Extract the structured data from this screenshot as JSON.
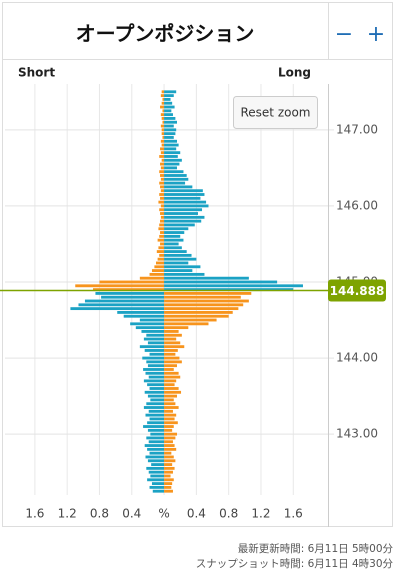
{
  "header": {
    "title": "オープンポジション",
    "zoom_out": "−",
    "zoom_in": "+"
  },
  "chart_data": {
    "type": "bar",
    "orientation": "horizontal",
    "reset_zoom": "Reset zoom",
    "y": [
      147.5,
      147.45,
      147.4,
      147.35,
      147.3,
      147.25,
      147.2,
      147.15,
      147.1,
      147.05,
      147,
      146.95,
      146.9,
      146.85,
      146.8,
      146.75,
      146.7,
      146.65,
      146.6,
      146.55,
      146.5,
      146.45,
      146.4,
      146.35,
      146.3,
      146.25,
      146.2,
      146.15,
      146.1,
      146.05,
      146,
      145.95,
      145.9,
      145.85,
      145.8,
      145.75,
      145.7,
      145.65,
      145.6,
      145.55,
      145.5,
      145.45,
      145.4,
      145.35,
      145.3,
      145.25,
      145.2,
      145.15,
      145.1,
      145.05,
      145,
      144.95,
      144.9,
      144.85,
      144.8,
      144.75,
      144.7,
      144.65,
      144.6,
      144.55,
      144.5,
      144.45,
      144.4,
      144.35,
      144.3,
      144.25,
      144.2,
      144.15,
      144.1,
      144.05,
      144,
      143.95,
      143.9,
      143.85,
      143.8,
      143.75,
      143.7,
      143.65,
      143.6,
      143.55,
      143.5,
      143.45,
      143.4,
      143.35,
      143.3,
      143.25,
      143.2,
      143.15,
      143.1,
      143.05,
      143,
      142.95,
      142.9,
      142.85,
      142.8,
      142.75,
      142.7,
      142.65,
      142.6,
      142.55,
      142.5,
      142.45,
      142.4,
      142.35,
      142.3,
      142.25
    ],
    "series": [
      {
        "name": "Short",
        "side": "left",
        "color_above": "#f7941d",
        "color_below": "#1ba2c4",
        "values": [
          0.03,
          0.04,
          0.02,
          0.03,
          0.05,
          0.02,
          0.04,
          0.03,
          0.02,
          0.04,
          0.03,
          0.03,
          0.02,
          0.04,
          0.03,
          0.05,
          0.04,
          0.06,
          0.03,
          0.05,
          0.04,
          0.06,
          0.05,
          0.04,
          0.06,
          0.05,
          0.04,
          0.06,
          0.05,
          0.07,
          0.04,
          0.06,
          0.05,
          0.04,
          0.05,
          0.06,
          0.07,
          0.05,
          0.06,
          0.08,
          0.05,
          0.07,
          0.09,
          0.06,
          0.08,
          0.1,
          0.12,
          0.15,
          0.18,
          0.3,
          0.8,
          1.1,
          0.88,
          0.85,
          0.78,
          0.98,
          1.06,
          1.16,
          0.58,
          0.5,
          0.3,
          0.42,
          0.35,
          0.28,
          0.22,
          0.25,
          0.2,
          0.3,
          0.24,
          0.18,
          0.27,
          0.22,
          0.2,
          0.26,
          0.23,
          0.19,
          0.25,
          0.21,
          0.18,
          0.24,
          0.2,
          0.17,
          0.22,
          0.25,
          0.19,
          0.23,
          0.18,
          0.21,
          0.26,
          0.2,
          0.17,
          0.22,
          0.19,
          0.24,
          0.21,
          0.18,
          0.23,
          0.2,
          0.16,
          0.22,
          0.19,
          0.17,
          0.21,
          0.15,
          0.18,
          0.14
        ]
      },
      {
        "name": "Long",
        "side": "right",
        "color_above": "#1ba2c4",
        "color_below": "#f7941d",
        "values": [
          0.15,
          0.12,
          0.08,
          0.1,
          0.13,
          0.09,
          0.11,
          0.14,
          0.16,
          0.12,
          0.15,
          0.14,
          0.12,
          0.16,
          0.18,
          0.15,
          0.2,
          0.17,
          0.22,
          0.19,
          0.16,
          0.24,
          0.28,
          0.3,
          0.26,
          0.35,
          0.48,
          0.5,
          0.45,
          0.52,
          0.55,
          0.47,
          0.42,
          0.5,
          0.46,
          0.38,
          0.3,
          0.25,
          0.2,
          0.24,
          0.18,
          0.22,
          0.28,
          0.34,
          0.4,
          0.3,
          0.45,
          0.35,
          0.5,
          1.05,
          1.4,
          1.72,
          1.6,
          1.08,
          0.95,
          1.05,
          0.98,
          0.92,
          0.85,
          0.8,
          0.65,
          0.55,
          0.3,
          0.18,
          0.22,
          0.15,
          0.2,
          0.25,
          0.17,
          0.14,
          0.19,
          0.22,
          0.16,
          0.12,
          0.18,
          0.2,
          0.15,
          0.13,
          0.18,
          0.21,
          0.16,
          0.12,
          0.14,
          0.18,
          0.11,
          0.15,
          0.13,
          0.17,
          0.12,
          0.1,
          0.16,
          0.14,
          0.11,
          0.13,
          0.15,
          0.09,
          0.12,
          0.14,
          0.1,
          0.13,
          0.11,
          0.08,
          0.12,
          0.1,
          0.09,
          0.11
        ]
      }
    ],
    "current_price": {
      "value": 144.888,
      "color": "#7ea300"
    },
    "xlim": [
      -1.97,
      2.03
    ],
    "xticks": [
      {
        "value": -1.6,
        "label": "1.6"
      },
      {
        "value": -1.2,
        "label": "1.2"
      },
      {
        "value": -0.8,
        "label": "0.8"
      },
      {
        "value": -0.4,
        "label": "0.4"
      },
      {
        "value": 0,
        "label": "%"
      },
      0.4,
      0.8,
      1.2,
      1.6
    ],
    "ylim": [
      142.2,
      147.55
    ],
    "yticks": [
      {
        "value": 143,
        "label": "143.00"
      },
      {
        "value": 144,
        "label": "144.00"
      },
      {
        "value": 145,
        "label": "145.00"
      },
      {
        "value": 146,
        "label": "146.00"
      },
      {
        "value": 147,
        "label": "147.00"
      }
    ],
    "grid": true
  },
  "footer": {
    "updated": "最新更新時間: 6月11日 5時00分",
    "snapshot": "スナップショット時間: 6月11日 4時30分"
  }
}
